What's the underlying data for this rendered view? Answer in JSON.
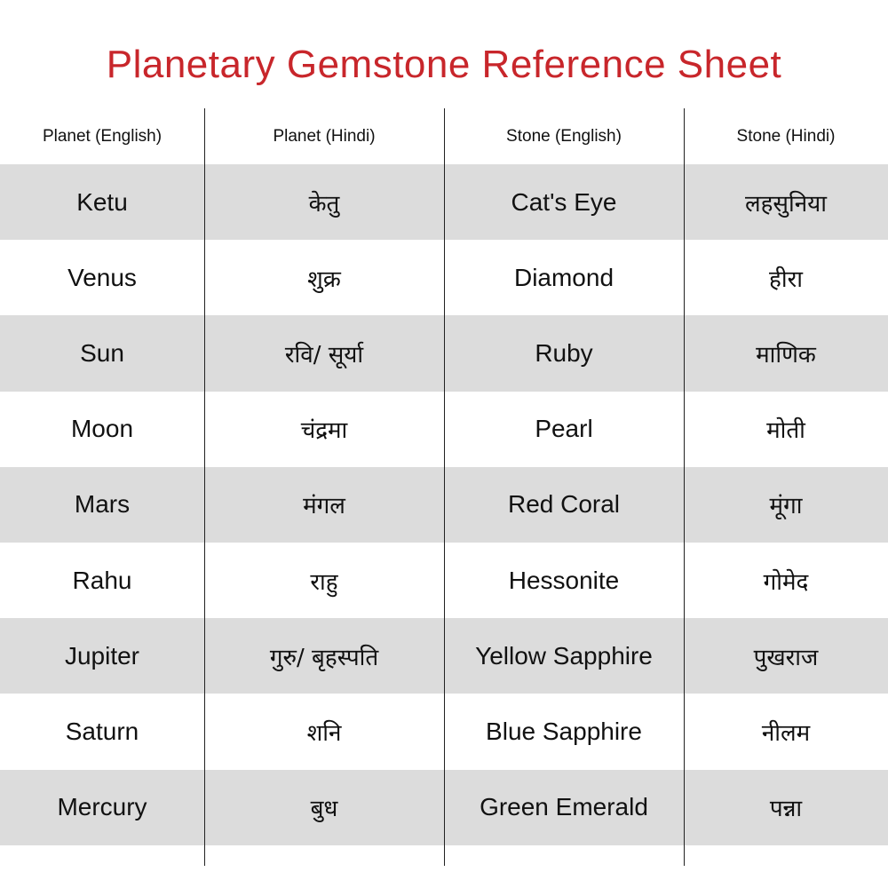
{
  "title": "Planetary Gemstone Reference Sheet",
  "colors": {
    "title": "#c8262b",
    "shaded_row": "#dcdcdc"
  },
  "headers": [
    "Planet (English)",
    "Planet (Hindi)",
    "Stone (English)",
    "Stone (Hindi)"
  ],
  "rows": [
    [
      "Ketu",
      "केतु",
      "Cat's Eye",
      "लहसुनिया"
    ],
    [
      "Venus",
      "शुक्र",
      "Diamond",
      "हीरा"
    ],
    [
      "Sun",
      "रवि/ सूर्या",
      "Ruby",
      "माणिक"
    ],
    [
      "Moon",
      "चंद्रमा",
      "Pearl",
      "मोती"
    ],
    [
      "Mars",
      "मंगल",
      "Red Coral",
      "मूंगा"
    ],
    [
      "Rahu",
      "राहु",
      "Hessonite",
      "गोमेद"
    ],
    [
      "Jupiter",
      "गुरु/ बृहस्पति",
      "Yellow Sapphire",
      "पुखराज"
    ],
    [
      "Saturn",
      "शनि",
      "Blue Sapphire",
      "नीलम"
    ],
    [
      "Mercury",
      "बुध",
      "Green Emerald",
      "पन्ना"
    ]
  ]
}
